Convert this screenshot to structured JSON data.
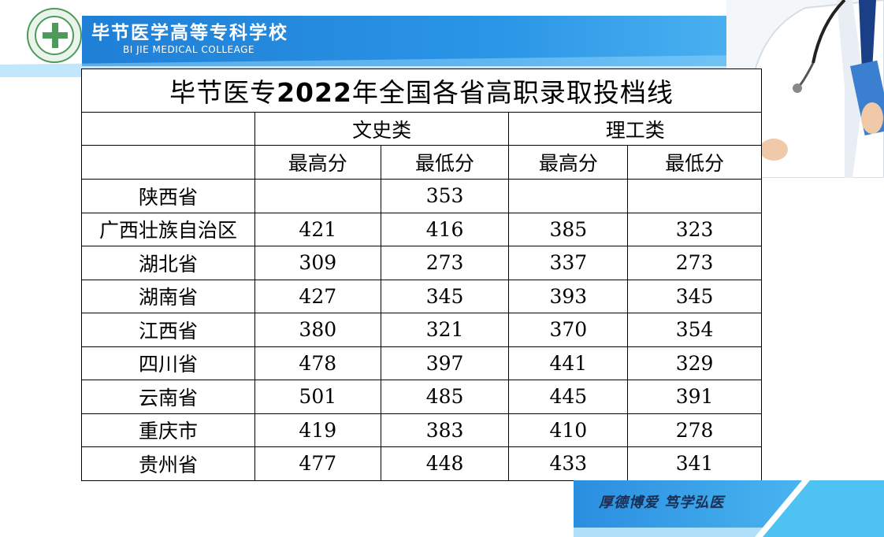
{
  "header": {
    "school_name_cn": "毕节医学高等专科学校",
    "school_name_en": "BI JIE MEDICAL COLLEAGE",
    "brand_color": "#2a8ee0",
    "accent_color": "#5bc4f5"
  },
  "table": {
    "title_prefix": "毕节医专",
    "title_year": "2022",
    "title_suffix": "年全国各省高职录取投档线",
    "group_headers": [
      "文史类",
      "理工类"
    ],
    "sub_headers": [
      "最高分",
      "最低分",
      "最高分",
      "最低分"
    ],
    "rows": [
      {
        "province": "陕西省",
        "values": [
          "",
          "353",
          "",
          ""
        ]
      },
      {
        "province": "广西壮族自治区",
        "values": [
          "421",
          "416",
          "385",
          "323"
        ]
      },
      {
        "province": "湖北省",
        "values": [
          "309",
          "273",
          "337",
          "273"
        ]
      },
      {
        "province": "湖南省",
        "values": [
          "427",
          "345",
          "393",
          "345"
        ]
      },
      {
        "province": "江西省",
        "values": [
          "380",
          "321",
          "370",
          "354"
        ]
      },
      {
        "province": "四川省",
        "values": [
          "478",
          "397",
          "441",
          "329"
        ]
      },
      {
        "province": "云南省",
        "values": [
          "501",
          "485",
          "445",
          "391"
        ]
      },
      {
        "province": "重庆市",
        "values": [
          "419",
          "383",
          "410",
          "278"
        ]
      },
      {
        "province": "贵州省",
        "values": [
          "477",
          "448",
          "433",
          "341"
        ]
      }
    ]
  },
  "footer": {
    "motto": "厚德博爱 笃学弘医"
  }
}
